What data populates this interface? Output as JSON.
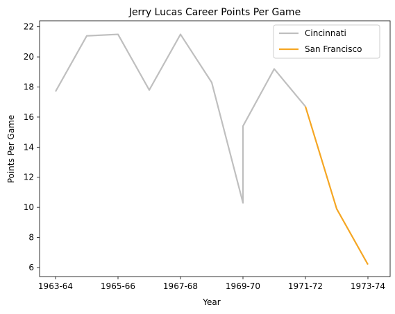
{
  "chart_data": {
    "type": "line",
    "title": "Jerry Lucas Career Points Per Game",
    "xlabel": "Year",
    "ylabel": "Points Per Game",
    "xticks": [
      "1963-64",
      "1965-66",
      "1967-68",
      "1969-70",
      "1971-72",
      "1973-74"
    ],
    "ylim": [
      5.4,
      22.4
    ],
    "yticks": [
      6,
      8,
      10,
      12,
      14,
      16,
      18,
      20,
      22
    ],
    "grid": false,
    "legend_position": "top-right",
    "series": [
      {
        "name": "Cincinnati",
        "color": "#bfbfbf",
        "x": [
          "1963-64",
          "1964-65",
          "1965-66",
          "1966-67",
          "1967-68",
          "1968-69",
          "1969-70",
          "1969-70",
          "1970-71",
          "1971-72"
        ],
        "values": [
          17.7,
          21.4,
          21.5,
          17.8,
          21.5,
          18.3,
          10.3,
          15.4,
          19.2,
          16.7
        ]
      },
      {
        "name": "San Francisco",
        "color": "#f5a623",
        "x": [
          "1971-72",
          "1972-73",
          "1973-74"
        ],
        "values": [
          16.7,
          9.9,
          6.2
        ]
      }
    ]
  }
}
